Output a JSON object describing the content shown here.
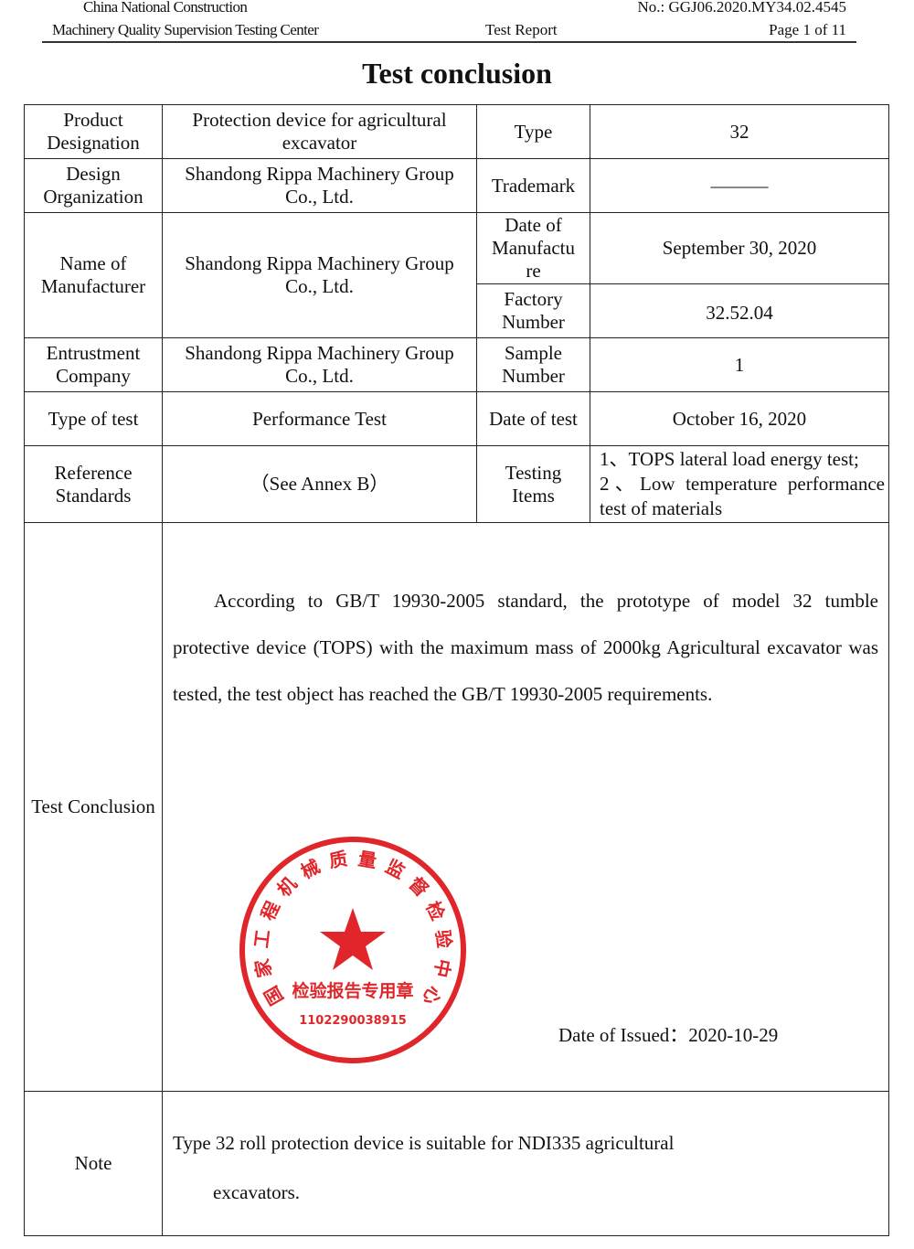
{
  "header": {
    "org_line1": "China National Construction",
    "org_line2": "Machinery Quality Supervision Testing Center",
    "doc_type": "Test Report",
    "report_no": "No.: GGJ06.2020.MY34.02.4545",
    "page": "Page 1 of 11"
  },
  "title": "Test conclusion",
  "rows": {
    "product_label": "Product Designation",
    "product_value": "Protection device for agricultural excavator",
    "type_label": "Type",
    "type_value": "32",
    "design_label": "Design Organization",
    "design_value": "Shandong Rippa Machinery Group Co., Ltd.",
    "trademark_label": "Trademark",
    "trademark_value": "———",
    "manufacturer_label": "Name of Manufacturer",
    "manufacturer_value": "Shandong Rippa Machinery Group Co., Ltd.",
    "date_manu_label": "Date of Manufactu re",
    "date_manu_value": "September 30, 2020",
    "factory_label": "Factory Number",
    "factory_value": "32.52.04",
    "entrust_label": "Entrustment Company",
    "entrust_value": "Shandong Rippa Machinery Group Co., Ltd.",
    "sample_label": "Sample Number",
    "sample_value": "1",
    "testtype_label": "Type of test",
    "testtype_value": "Performance Test",
    "datetest_label": "Date of test",
    "datetest_value": "October 16, 2020",
    "ref_label": "Reference Standards",
    "ref_value": "（See Annex B）",
    "items_label": "Testing Items",
    "items_value_1": "1、TOPS lateral load energy test;",
    "items_value_2": "2、Low temperature performance test of materials"
  },
  "conclusion": {
    "label": "Test Conclusion",
    "text": "According to GB/T 19930-2005 standard, the prototype of model 32 tumble protective device (TOPS) with the maximum mass of 2000kg Agricultural excavator was tested, the test object has reached the GB/T 19930-2005 requirements.",
    "date_issued": "Date of Issued：2020-10-29"
  },
  "stamp": {
    "ring_text": "国家工程机械质量监督检验中心",
    "center_text": "检验报告专用章",
    "code": "1102290038915",
    "color": "#e0262a"
  },
  "note": {
    "label": "Note",
    "line1": "Type 32 roll protection device is suitable for NDI335 agricultural",
    "line2": "excavators."
  }
}
